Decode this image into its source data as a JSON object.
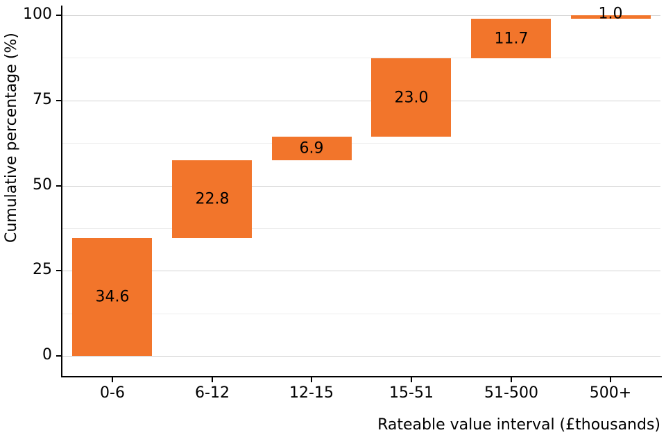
{
  "chart_data": {
    "type": "bar",
    "subtype": "waterfall",
    "title": "",
    "categories": [
      "0-6",
      "6-12",
      "12-15",
      "15-51",
      "51-500",
      "500+"
    ],
    "values": [
      34.6,
      22.8,
      6.9,
      23.0,
      11.7,
      1.0
    ],
    "value_labels": [
      "34.6",
      "22.8",
      "6.9",
      "23.0",
      "11.7",
      "1.0"
    ],
    "cumulative": [
      34.6,
      57.4,
      64.3,
      87.3,
      99.0,
      100.0
    ],
    "xlabel": "Rateable value interval (£thousands)",
    "ylabel": "Cumulative percentage (%)",
    "ylim": [
      0,
      100
    ],
    "yticks": [
      "0",
      "25",
      "50",
      "75",
      "100"
    ],
    "ytick_values": [
      0,
      25,
      50,
      75,
      100
    ],
    "yticks_minor": [
      12.5,
      37.5,
      62.5,
      87.5
    ],
    "bar_color": "#f2752b",
    "grid": "horizontal",
    "legend": "none",
    "background": "#ffffff"
  }
}
